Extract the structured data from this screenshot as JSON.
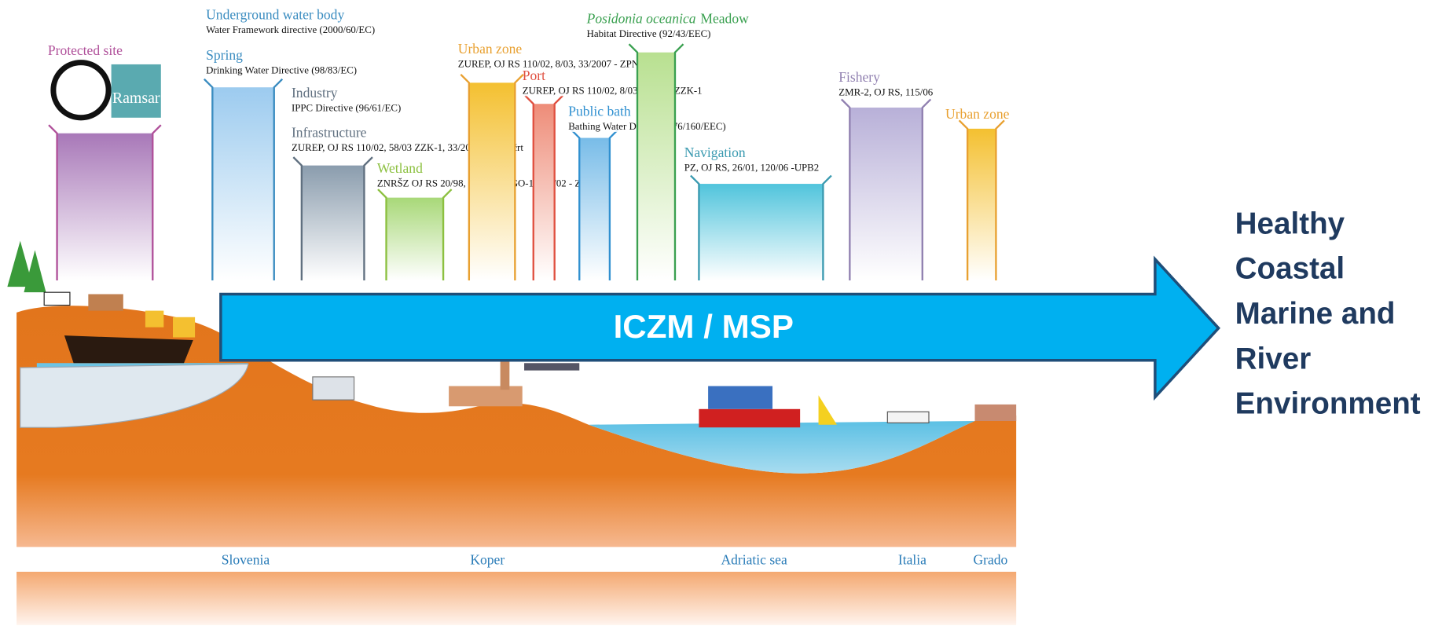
{
  "zones": [
    {
      "name": "Protected site",
      "color": "#b0509a",
      "fill": "#a878b8"
    },
    {
      "name": "Underground water body",
      "directive": "Water Framework directive (2000/60/EC)",
      "color": "#3a8cc0"
    },
    {
      "name": "Spring",
      "directive": "Drinking Water Directive (98/83/EC)",
      "color": "#3a8cc0",
      "fill": "#9ccbef"
    },
    {
      "name": "Industry",
      "directive": "IPPC Directive (96/61/EC)",
      "color": "#607080"
    },
    {
      "name": "Infrastructure",
      "directive": "ZUREP, OJ RS 110/02, 58/03  ZZK-1, 33/2007 - ZPNačrt",
      "color": "#607080",
      "fill": "#8a9cad"
    },
    {
      "name": "Wetland",
      "directive": "ZNRŠZ OJ RS 20/98, 110/02 - ZGO-1, 119/02 - ZON-A",
      "color": "#8cc040",
      "fill": "#a8d878"
    },
    {
      "name": "Urban zone",
      "directive": "ZUREP, OJ RS 110/02, 8/03, 33/2007 - ZPNačrt",
      "color": "#e8a030",
      "fill": "#f4c030"
    },
    {
      "name": "Port",
      "directive": "ZUREP, OJ RS 110/02, 8/03, 58/03 - ZZK-1",
      "color": "#e05040",
      "fill": "#ee8c78"
    },
    {
      "name": "Public bath",
      "directive": "Bathing Water Directive (76/160/EEC)",
      "color": "#3090d0",
      "fill": "#78bce8"
    },
    {
      "name_italic": "Posidonia oceanica",
      "name": "Meadow",
      "directive": "Habitat Directive (92/43/EEC)",
      "color": "#3aa050",
      "fill": "#b8e090"
    },
    {
      "name": "Navigation",
      "directive": "PZ, OJ RS, 26/01, 120/06 -UPB2",
      "color": "#3a9ab0",
      "fill": "#50c4dc"
    },
    {
      "name": "Fishery",
      "directive": "ZMR-2, OJ RS, 115/06",
      "color": "#9080b0",
      "fill": "#b8b0d8"
    },
    {
      "name": "Urban zone",
      "color": "#e8a030",
      "fill": "#f4c030"
    }
  ],
  "logo_text": "Ramsar",
  "places": [
    "Slovenia",
    "Koper",
    "Adriatic sea",
    "Italia",
    "Grado"
  ],
  "arrow_label": "ICZM / MSP",
  "goal_lines": [
    "Healthy",
    "Coastal",
    "Marine and",
    "River",
    "Environment"
  ]
}
